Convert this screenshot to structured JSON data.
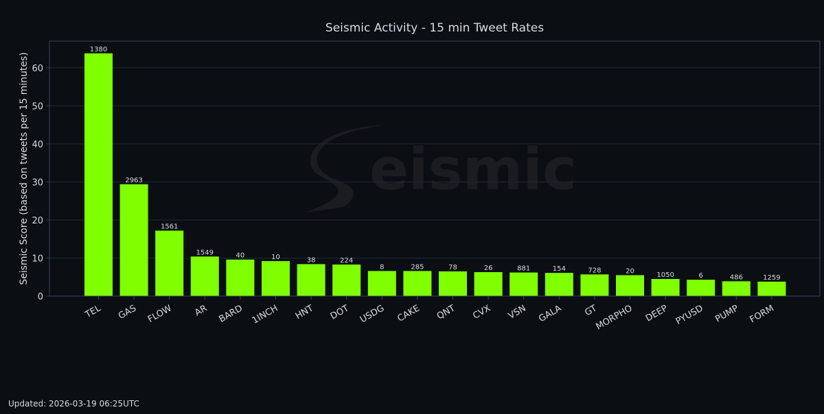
{
  "colors": {
    "background": "#0b0e13",
    "bar": "#7fff00",
    "grid": "#1f2a38",
    "axis": "#3a4658",
    "text": "#d8dce2",
    "watermark": "#1a1c1f"
  },
  "watermark_text": "eismic",
  "footer": {
    "updated": "Updated: 2026-03-19 06:25UTC"
  },
  "chart_data": {
    "type": "bar",
    "title": "Seismic Activity - 15 min Tweet Rates",
    "xlabel": "",
    "ylabel": "Seismic Score (based on tweets per 15 minutes)",
    "ylim": [
      0,
      67
    ],
    "yticks": [
      0,
      10,
      20,
      30,
      40,
      50,
      60
    ],
    "grid": true,
    "categories": [
      "TEL",
      "GAS",
      "FLOW",
      "AR",
      "BARD",
      "1INCH",
      "HNT",
      "DOT",
      "USDG",
      "CAKE",
      "QNT",
      "CVX",
      "VSN",
      "GALA",
      "GT",
      "MORPHO",
      "DEEP",
      "PYUSD",
      "PUMP",
      "FORM"
    ],
    "values": [
      63.8,
      29.4,
      17.2,
      10.4,
      9.6,
      9.2,
      8.4,
      8.3,
      6.6,
      6.6,
      6.5,
      6.3,
      6.2,
      6.1,
      5.7,
      5.5,
      4.5,
      4.3,
      3.9,
      3.8
    ],
    "bar_labels": [
      "1380",
      "2963",
      "1561",
      "1549",
      "40",
      "10",
      "38",
      "224",
      "8",
      "285",
      "78",
      "26",
      "881",
      "154",
      "728",
      "20",
      "1050",
      "6",
      "486",
      "1259"
    ]
  }
}
